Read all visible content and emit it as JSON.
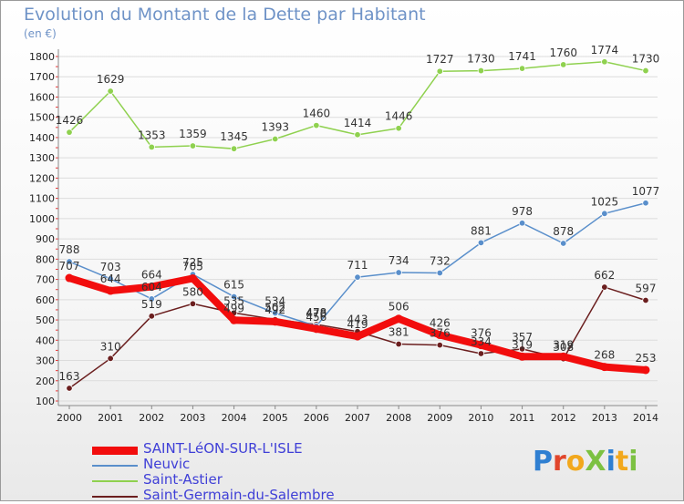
{
  "header": {
    "title": "Evolution du Montant de la Dette par Habitant",
    "unit": "(en €)"
  },
  "logo": {
    "text": "ProXiti",
    "colors": [
      "#2f7fd1",
      "#e1462c",
      "#f2a81d",
      "#7cc142",
      "#2f7fd1",
      "#f2a81d",
      "#7cc142"
    ]
  },
  "chart_data": {
    "type": "line",
    "title": "Evolution du Montant de la Dette par Habitant",
    "ylabel": "(en €)",
    "xlabel": "",
    "x": [
      "2000",
      "2001",
      "2002",
      "2003",
      "2004",
      "2005",
      "2006",
      "2007",
      "2008",
      "2009",
      "2010",
      "2011",
      "2012",
      "2013",
      "2014"
    ],
    "ylim": [
      100,
      1800
    ],
    "yticks": [
      100,
      200,
      300,
      400,
      500,
      600,
      700,
      800,
      900,
      1000,
      1100,
      1200,
      1300,
      1400,
      1500,
      1600,
      1700,
      1800
    ],
    "grid": "horizontal",
    "legend_position": "bottom-left",
    "series": [
      {
        "name": "SAINT-LéON-SUR-L'ISLE",
        "color": "#f20d0d",
        "width": 8,
        "values": [
          707,
          644,
          664,
          705,
          499,
          492,
          456,
          419,
          506,
          426,
          376,
          319,
          319,
          268,
          253
        ]
      },
      {
        "name": "Neuvic",
        "color": "#5a8fcb",
        "width": 1.5,
        "values": [
          788,
          703,
          604,
          725,
          615,
          534,
          470,
          711,
          734,
          732,
          881,
          978,
          878,
          1025,
          1077
        ]
      },
      {
        "name": "Saint-Astier",
        "color": "#8fd14f",
        "width": 1.5,
        "values": [
          1426,
          1629,
          1353,
          1359,
          1345,
          1393,
          1460,
          1414,
          1446,
          1727,
          1730,
          1741,
          1760,
          1774,
          1730
        ]
      },
      {
        "name": "Saint-Germain-du-Salembre",
        "color": "#6b1f1f",
        "width": 1.5,
        "values": [
          163,
          310,
          519,
          580,
          535,
          502,
          478,
          443,
          381,
          376,
          334,
          357,
          308,
          662,
          597
        ]
      }
    ]
  }
}
